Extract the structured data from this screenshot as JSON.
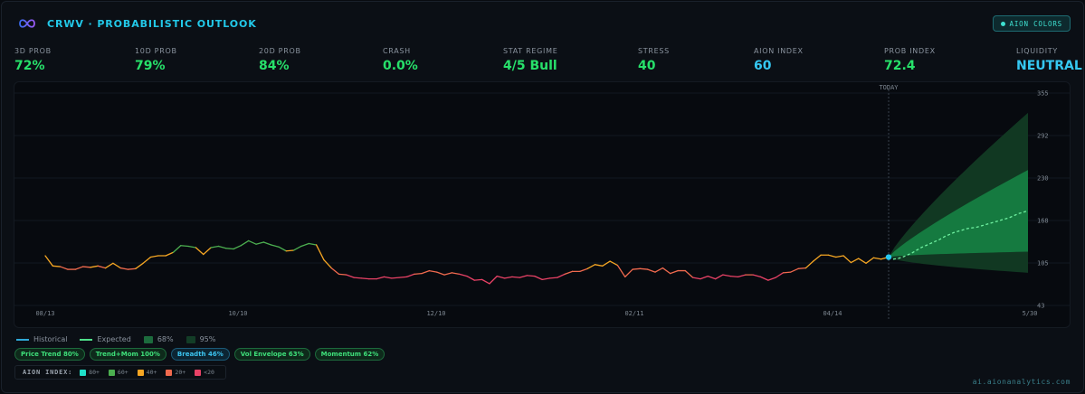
{
  "header": {
    "title": "CRWV · PROBABILISTIC OUTLOOK",
    "colors_button": "AION COLORS"
  },
  "metrics": [
    {
      "label": "3D PROB",
      "value": "72%",
      "color": "#27e06a"
    },
    {
      "label": "10D PROB",
      "value": "79%",
      "color": "#27e06a"
    },
    {
      "label": "20D PROB",
      "value": "84%",
      "color": "#27e06a"
    },
    {
      "label": "CRASH",
      "value": "0.0%",
      "color": "#27e06a"
    },
    {
      "label": "STAT REGIME",
      "value": "4/5 Bull",
      "color": "#27e06a"
    },
    {
      "label": "STRESS",
      "value": "40",
      "color": "#27e06a"
    },
    {
      "label": "AION INDEX",
      "value": "60",
      "color": "#35c8f2"
    },
    {
      "label": "PROB INDEX",
      "value": "72.4",
      "color": "#27e06a"
    },
    {
      "label": "LIQUIDITY",
      "value": "NEUTRAL",
      "color": "#35c8f2"
    }
  ],
  "chart_data": {
    "type": "line",
    "today_label": "TODAY",
    "x_ticks": [
      "08/13",
      "10/10",
      "12/10",
      "02/11",
      "04/14",
      "5/30"
    ],
    "y_ticks": [
      355,
      292,
      230,
      168,
      105,
      43
    ],
    "ylim": [
      43,
      355
    ],
    "grid": true,
    "series": [
      {
        "name": "Historical",
        "values": [
          116,
          101,
          100,
          96,
          96,
          100,
          99,
          101,
          98,
          105,
          98,
          96,
          97,
          105,
          114,
          116,
          116,
          121,
          131,
          130,
          128,
          118,
          128,
          130,
          127,
          126,
          131,
          138,
          133,
          136,
          132,
          129,
          123,
          124,
          130,
          134,
          132,
          110,
          98,
          89,
          88,
          84,
          83,
          82,
          82,
          85,
          83,
          84,
          85,
          89,
          90,
          94,
          92,
          88,
          91,
          89,
          86,
          80,
          81,
          75,
          86,
          83,
          85,
          84,
          87,
          86,
          81,
          83,
          84,
          89,
          93,
          93,
          97,
          103,
          101,
          108,
          102,
          85,
          96,
          97,
          96,
          92,
          98,
          90,
          94,
          94,
          84,
          82,
          86,
          82,
          88,
          86,
          85,
          88,
          88,
          85,
          80,
          84,
          91,
          92,
          97,
          98,
          108,
          117,
          117,
          114,
          116,
          106,
          112,
          105,
          113,
          111,
          114
        ]
      },
      {
        "name": "Expected",
        "values": [
          111,
          112,
          114,
          117,
          120,
          124,
          128,
          131,
          134,
          137,
          140,
          144,
          147,
          150,
          152,
          154,
          156,
          157,
          158,
          160,
          162,
          164,
          166,
          168,
          170,
          172,
          175,
          178,
          180,
          182
        ]
      }
    ],
    "bands": [
      {
        "name": "68%",
        "upper_end": 242,
        "lower_end": 122
      },
      {
        "name": "95%",
        "upper_end": 326,
        "lower_end": 91
      }
    ],
    "legend": [
      "Historical",
      "Expected",
      "68%",
      "95%"
    ]
  },
  "chips": [
    {
      "label": "Price Trend 80%",
      "tone": "green"
    },
    {
      "label": "Trend+Mom 100%",
      "tone": "green"
    },
    {
      "label": "Breadth 46%",
      "tone": "blue"
    },
    {
      "label": "Vol Envelope 63%",
      "tone": "green"
    },
    {
      "label": "Momentum 62%",
      "tone": "green"
    }
  ],
  "aion_index_legend": {
    "label": "AION INDEX:",
    "items": [
      {
        "label": "80+",
        "color": "#1fe0c9"
      },
      {
        "label": "60+",
        "color": "#4caf50"
      },
      {
        "label": "40+",
        "color": "#f5a623"
      },
      {
        "label": "20+",
        "color": "#f06a4e"
      },
      {
        "label": "<20",
        "color": "#e84266"
      }
    ]
  },
  "footer": "ai.aionanalytics.com"
}
